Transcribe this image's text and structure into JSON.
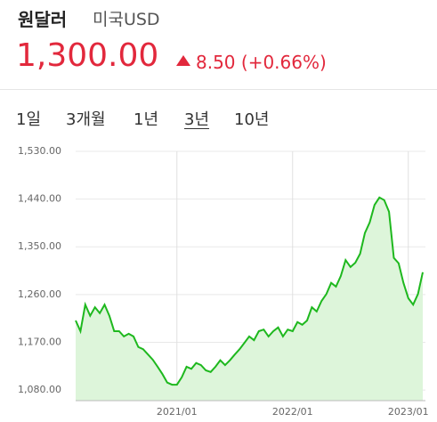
{
  "header": {
    "title": "원달러",
    "subtitle": "미국USD",
    "price": "1,300.00",
    "change": "8.50 (+0.66%)"
  },
  "tabs": {
    "items": [
      "1일",
      "3개월",
      "1년",
      "3년",
      "10년"
    ],
    "selected": 3
  },
  "chart_data": {
    "type": "area",
    "categories": [
      null,
      null,
      null,
      null,
      null,
      null,
      null,
      null,
      null,
      null,
      null,
      null,
      null,
      null,
      null,
      null,
      null,
      null,
      null,
      null,
      null,
      "2021/01",
      null,
      null,
      null,
      null,
      null,
      null,
      null,
      null,
      null,
      null,
      null,
      null,
      null,
      null,
      null,
      null,
      null,
      null,
      null,
      null,
      null,
      null,
      null,
      "2022/01",
      null,
      null,
      null,
      null,
      null,
      null,
      null,
      null,
      null,
      null,
      null,
      null,
      null,
      null,
      null,
      null,
      null,
      null,
      null,
      null,
      null,
      null,
      null,
      "2023/01",
      null,
      null,
      null
    ],
    "values": [
      1211,
      1191,
      1241,
      1220,
      1236,
      1225,
      1241,
      1220,
      1191,
      1191,
      1181,
      1186,
      1181,
      1161,
      1157,
      1147,
      1137,
      1124,
      1110,
      1094,
      1090,
      1090,
      1104,
      1124,
      1120,
      1131,
      1127,
      1117,
      1114,
      1124,
      1136,
      1127,
      1136,
      1147,
      1157,
      1169,
      1181,
      1174,
      1191,
      1194,
      1181,
      1191,
      1198,
      1181,
      1194,
      1191,
      1208,
      1203,
      1211,
      1236,
      1228,
      1248,
      1261,
      1282,
      1275,
      1295,
      1325,
      1312,
      1320,
      1337,
      1376,
      1396,
      1429,
      1443,
      1438,
      1416,
      1329,
      1319,
      1282,
      1253,
      1241,
      1261,
      1302
    ],
    "color": "#1eb81e",
    "fill": "#ddf5da",
    "ylim": [
      1060,
      1530
    ],
    "yticks": [
      {
        "value": 1080,
        "label": "1,080.00"
      },
      {
        "value": 1170,
        "label": "1,170.00"
      },
      {
        "value": 1260,
        "label": "1,260.00"
      },
      {
        "value": 1350,
        "label": "1,350.00"
      },
      {
        "value": 1440,
        "label": "1,440.00"
      },
      {
        "value": 1530,
        "label": "1,530.00"
      }
    ],
    "grid": true
  }
}
